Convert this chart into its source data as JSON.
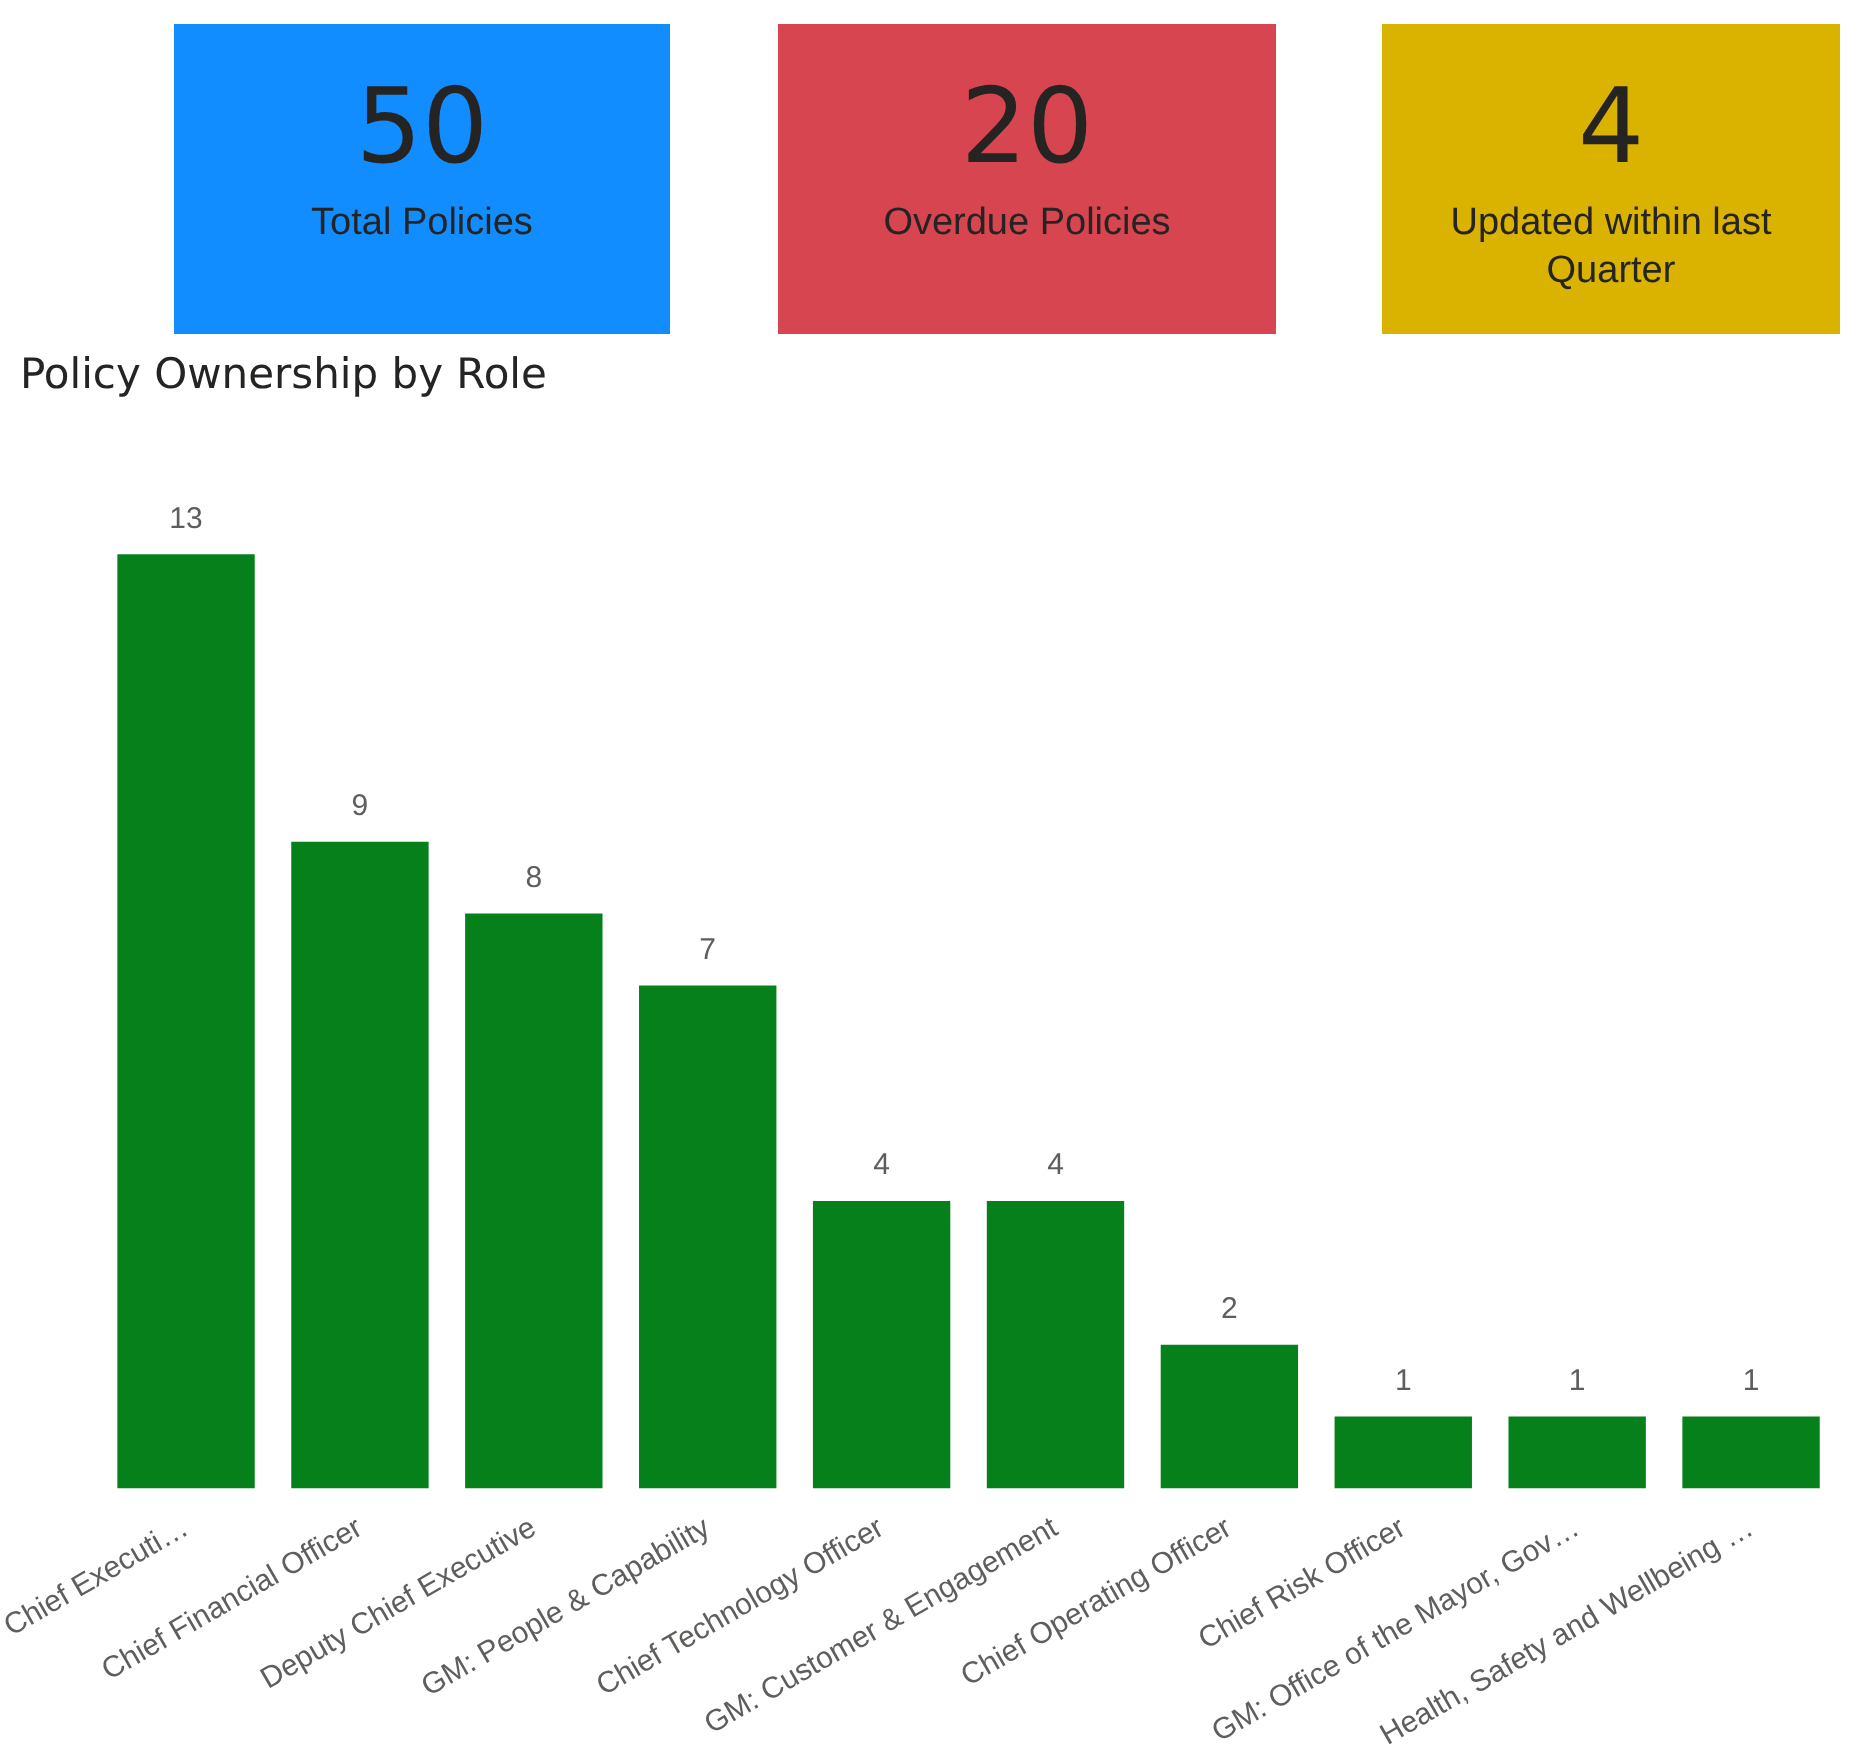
{
  "chart_data": [
    {
      "type": "other",
      "categories": [
        "Total Policies",
        "Overdue Policies",
        "Updated within last Quarter"
      ],
      "values": [
        50,
        20,
        4
      ],
      "colors": [
        "#118dff",
        "#d64550",
        "#d9b300"
      ],
      "data_labels": true
    },
    {
      "type": "bar",
      "title": "Policy Ownership by Role",
      "categories": [
        "Chief Executi…",
        "Chief Financial Officer",
        "Deputy Chief Executive",
        "GM: People & Capability",
        "Chief Technology Officer",
        "GM: Customer & Engagement",
        "Chief Operating Officer",
        "Chief Risk Officer",
        "GM: Office of the Mayor, Gov…",
        "Health, Safety and Wellbeing …"
      ],
      "values": [
        13,
        9,
        8,
        7,
        4,
        4,
        2,
        1,
        1,
        1
      ],
      "color": "#06801a",
      "data_labels": true
    }
  ]
}
